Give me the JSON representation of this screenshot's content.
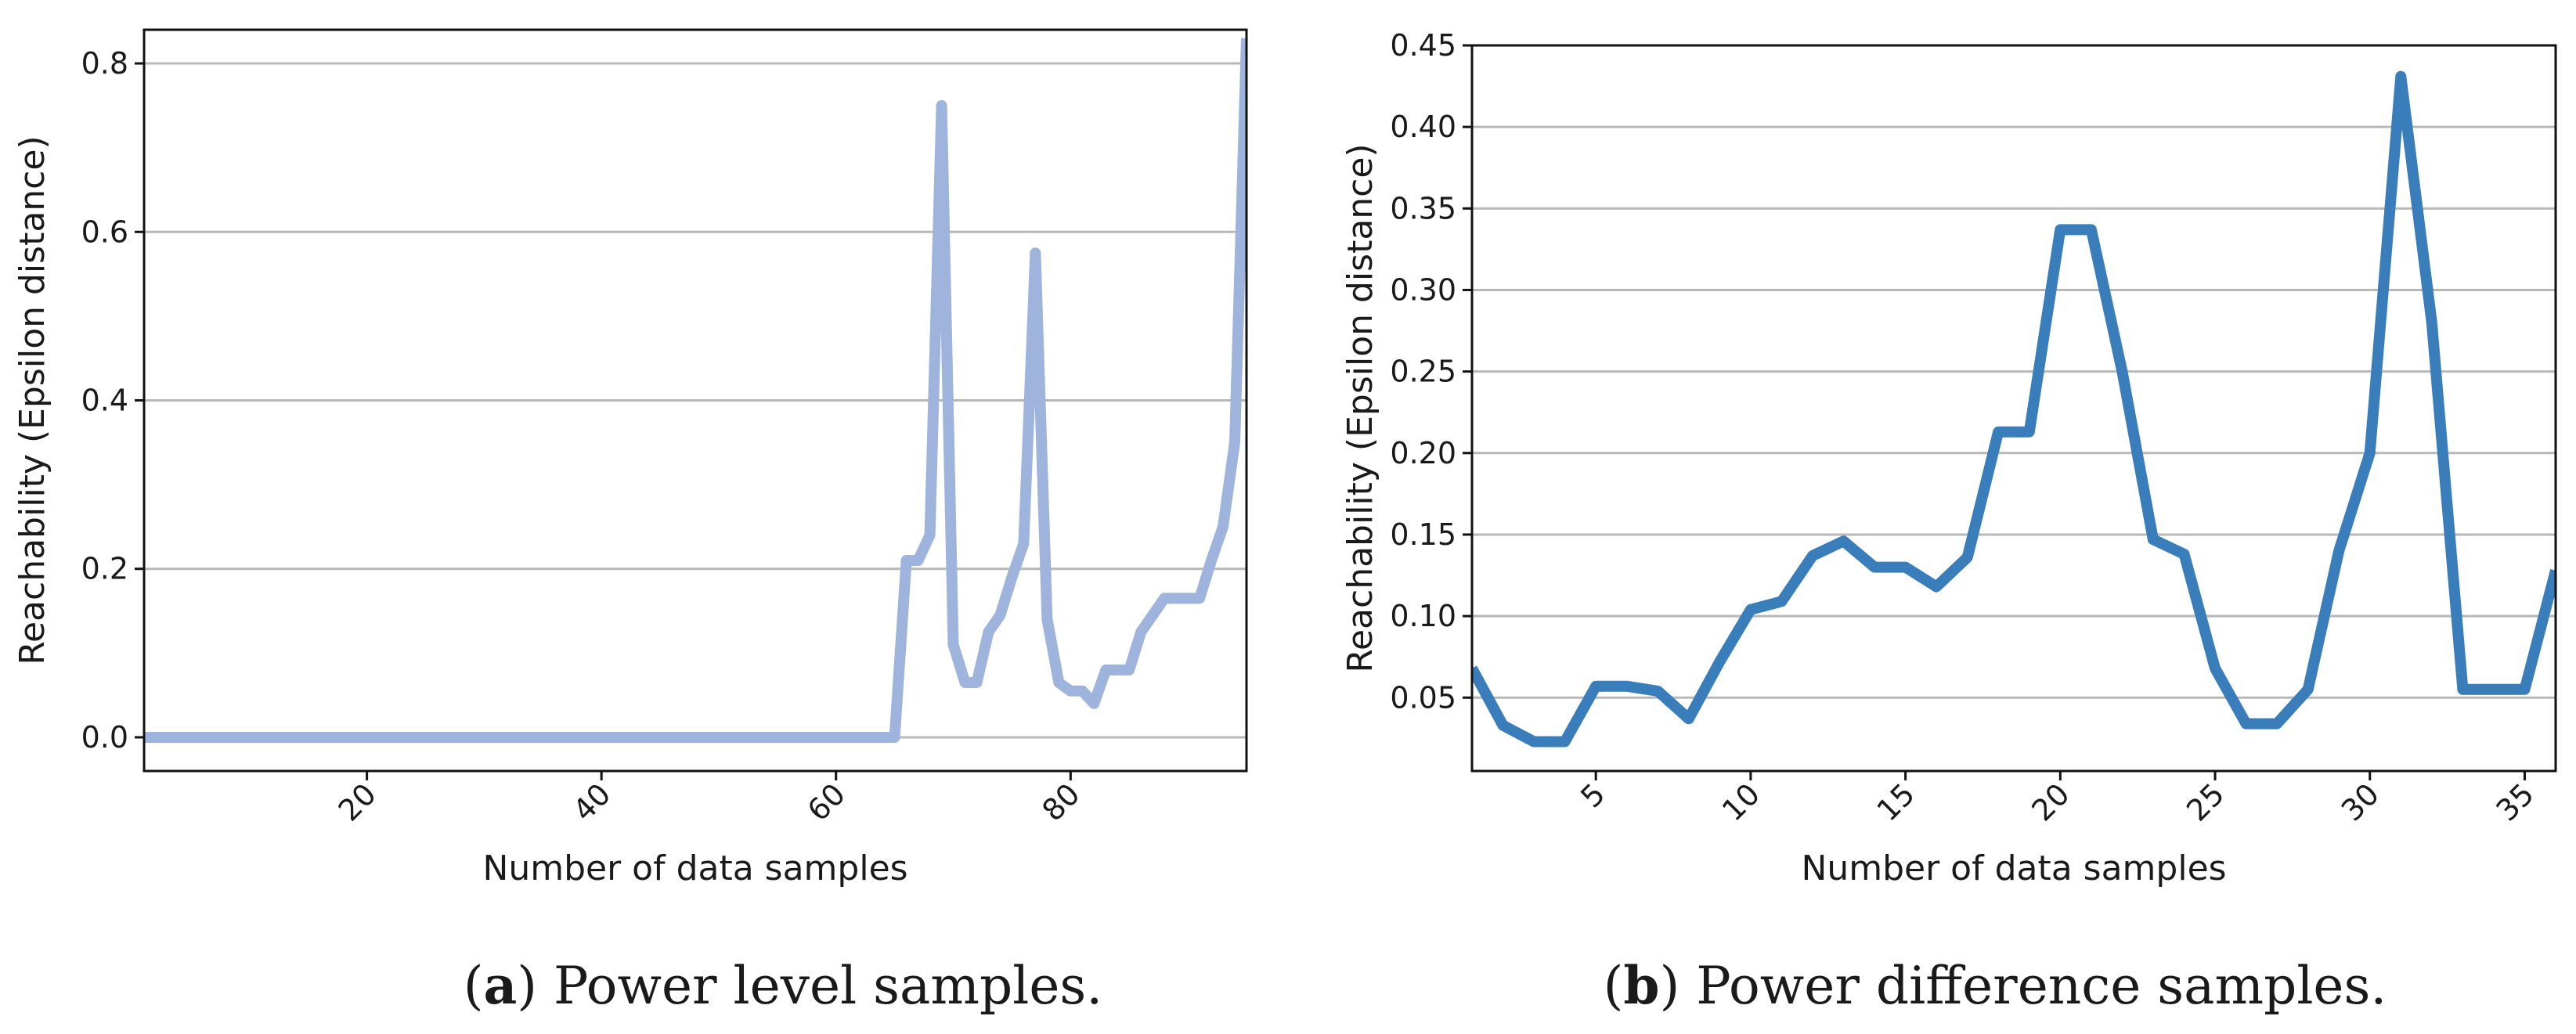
{
  "chart_data": [
    {
      "type": "line",
      "panel": "a",
      "caption_letter": "a",
      "caption_text": " Power level samples.",
      "xlabel": "Number of data samples",
      "ylabel": "Reachability (Epsilon distance)",
      "xlim": [
        1,
        95
      ],
      "ylim": [
        -0.04,
        0.84
      ],
      "xticks": [
        20,
        40,
        60,
        80
      ],
      "yticks": [
        0.0,
        0.2,
        0.4,
        0.6,
        0.8
      ],
      "ytick_labels": [
        "0.0",
        "0.2",
        "0.4",
        "0.6",
        "0.8"
      ],
      "grid": "y",
      "color": "#9fb4dc",
      "series": [
        {
          "name": "power level",
          "x": [
            1,
            10,
            20,
            30,
            40,
            50,
            60,
            65,
            66,
            67,
            68,
            69,
            70,
            71,
            72,
            73,
            74,
            75,
            76,
            77,
            78,
            79,
            80,
            81,
            82,
            83,
            84,
            85,
            86,
            87,
            88,
            89,
            90,
            91,
            92,
            93,
            94,
            95
          ],
          "y": [
            0,
            0,
            0,
            0,
            0,
            0,
            0,
            0,
            0.21,
            0.21,
            0.24,
            0.75,
            0.11,
            0.065,
            0.065,
            0.125,
            0.145,
            0.19,
            0.23,
            0.575,
            0.14,
            0.065,
            0.055,
            0.055,
            0.04,
            0.08,
            0.08,
            0.08,
            0.125,
            0.145,
            0.165,
            0.165,
            0.165,
            0.165,
            0.21,
            0.25,
            0.35,
            0.83
          ]
        }
      ]
    },
    {
      "type": "line",
      "panel": "b",
      "caption_letter": "b",
      "caption_text": " Power difference samples.",
      "xlabel": "Number of data samples",
      "ylabel": "Reachability (Epsilon distance)",
      "xlim": [
        1,
        36
      ],
      "ylim": [
        0.005,
        0.45
      ],
      "xticks": [
        5,
        10,
        15,
        20,
        25,
        30,
        35
      ],
      "yticks": [
        0.05,
        0.1,
        0.15,
        0.2,
        0.25,
        0.3,
        0.35,
        0.4,
        0.45
      ],
      "ytick_labels": [
        "0.05",
        "0.10",
        "0.15",
        "0.20",
        "0.25",
        "0.30",
        "0.35",
        "0.40",
        "0.45"
      ],
      "grid": "y",
      "color": "#3a7dbb",
      "series": [
        {
          "name": "power difference",
          "x": [
            1,
            2,
            3,
            4,
            5,
            6,
            7,
            8,
            9,
            10,
            11,
            12,
            13,
            14,
            15,
            16,
            17,
            18,
            19,
            20,
            21,
            22,
            23,
            24,
            25,
            26,
            27,
            28,
            29,
            30,
            31,
            32,
            33,
            34,
            35,
            36
          ],
          "y": [
            0.068,
            0.033,
            0.023,
            0.023,
            0.057,
            0.057,
            0.054,
            0.037,
            0.072,
            0.104,
            0.109,
            0.137,
            0.146,
            0.13,
            0.13,
            0.118,
            0.136,
            0.213,
            0.213,
            0.337,
            0.337,
            0.25,
            0.147,
            0.138,
            0.068,
            0.034,
            0.034,
            0.055,
            0.14,
            0.2,
            0.431,
            0.28,
            0.055,
            0.055,
            0.055,
            0.128
          ]
        }
      ]
    }
  ]
}
